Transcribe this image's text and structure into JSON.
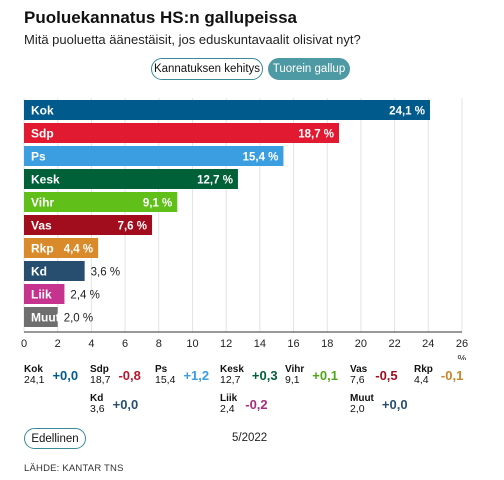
{
  "header": {
    "title": "Puoluekannatus HS:n gallupeissa",
    "subtitle": "Mitä puoluetta äänestäisit, jos eduskuntavaalit olisivat nyt?"
  },
  "toggles": {
    "trend_label": "Kannatuksen kehitys",
    "latest_label": "Tuorein gallup"
  },
  "chart_data": {
    "type": "bar",
    "orientation": "horizontal",
    "categories": [
      "Kok",
      "Sdp",
      "Ps",
      "Kesk",
      "Vihr",
      "Vas",
      "Rkp",
      "Kd",
      "Liik",
      "Muut"
    ],
    "values": [
      24.1,
      18.7,
      15.4,
      12.7,
      9.1,
      7.6,
      4.4,
      3.6,
      2.4,
      2.0
    ],
    "value_labels": [
      "24,1 %",
      "18,7 %",
      "15,4 %",
      "12,7 %",
      "9,1 %",
      "7,6 %",
      "4,4 %",
      "3,6 %",
      "2,4 %",
      "2,0 %"
    ],
    "colors": [
      "#005b8c",
      "#e11931",
      "#3a9ee0",
      "#006138",
      "#61bf1a",
      "#a20d1d",
      "#d98b2b",
      "#274e6e",
      "#c6338e",
      "#6e6e6e"
    ],
    "xlim": [
      0,
      26
    ],
    "xticks": [
      "0",
      "2",
      "4",
      "6",
      "8",
      "10",
      "12",
      "14",
      "16",
      "18",
      "20",
      "22",
      "24",
      "26"
    ],
    "xlabel": "%",
    "grid": true
  },
  "changes": [
    {
      "party": "Kok",
      "value": "24,1",
      "delta": "+0,0",
      "color": "#005b8c"
    },
    {
      "party": "Sdp",
      "value": "18,7",
      "delta": "-0,8",
      "color": "#b5172c"
    },
    {
      "party": "Ps",
      "value": "15,4",
      "delta": "+1,2",
      "color": "#3a9ee0"
    },
    {
      "party": "Kesk",
      "value": "12,7",
      "delta": "+0,3",
      "color": "#006138"
    },
    {
      "party": "Vihr",
      "value": "9,1",
      "delta": "+0,1",
      "color": "#4ea619"
    },
    {
      "party": "Vas",
      "value": "7,6",
      "delta": "-0,5",
      "color": "#a20d1d"
    },
    {
      "party": "Rkp",
      "value": "4,4",
      "delta": "-0,1",
      "color": "#c98528"
    },
    {
      "party": "Kd",
      "value": "3,6",
      "delta": "+0,0",
      "color": "#274e6e"
    },
    {
      "party": "Liik",
      "value": "2,4",
      "delta": "-0,2",
      "color": "#a52f7c"
    },
    {
      "party": "Muut",
      "value": "2,0",
      "delta": "+0,0",
      "color": "#274e6e"
    }
  ],
  "footer": {
    "prev_label": "Edellinen",
    "date": "5/2022",
    "source": "LÄHDE: KANTAR TNS"
  }
}
